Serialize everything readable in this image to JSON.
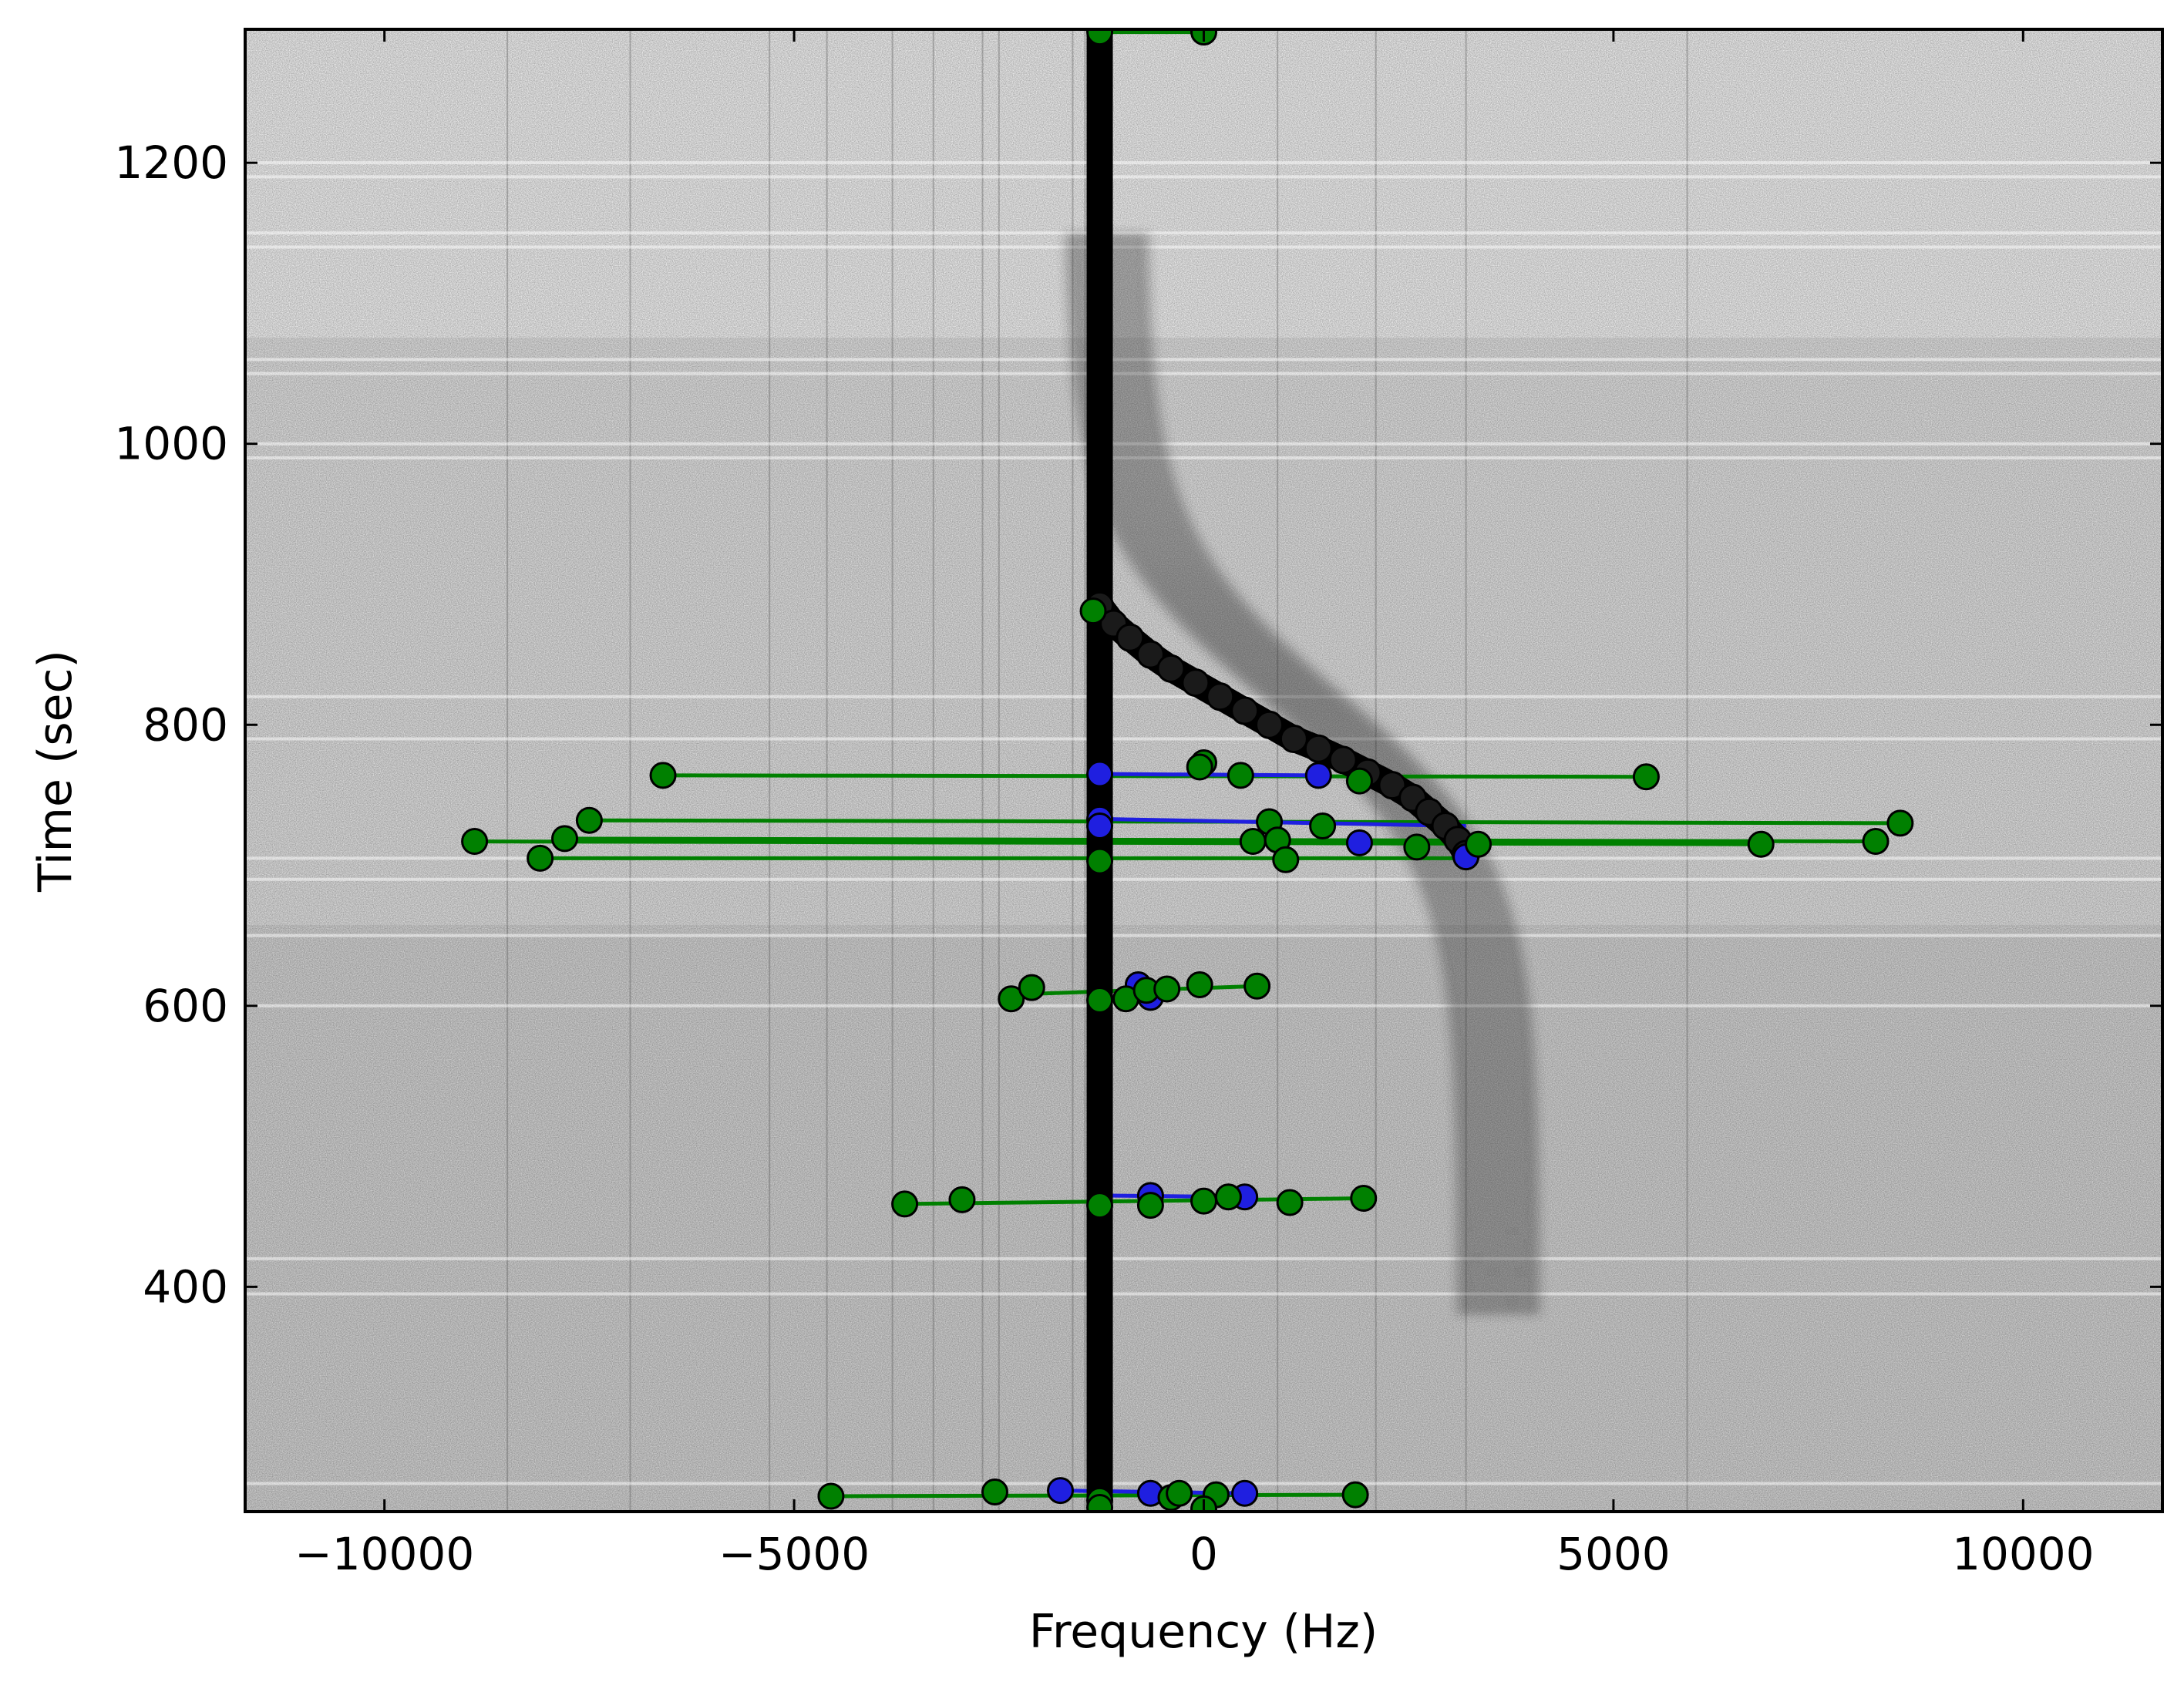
{
  "chart_data": {
    "type": "scatter",
    "title": "",
    "xlabel": "Frequency (Hz)",
    "ylabel": "Time (sec)",
    "xlim": [
      -11700,
      11700
    ],
    "ylim": [
      240,
      1295
    ],
    "xticks": [
      -10000,
      -5000,
      0,
      5000,
      10000
    ],
    "xtick_labels": [
      "−10000",
      "−5000",
      "0",
      "5000",
      "10000"
    ],
    "yticks": [
      400,
      600,
      800,
      1000,
      1200
    ],
    "ytick_labels": [
      "400",
      "600",
      "800",
      "1000",
      "1200"
    ],
    "background": "spectrogram (grayscale noise with dark drifting Doppler signal)",
    "colors": {
      "green": "#008000",
      "blue": "#1f1fe0",
      "track": "#000000",
      "frame": "#000000"
    },
    "track": {
      "name": "tracked frequency",
      "points": [
        [
          -1270,
          243
        ],
        [
          -1270,
          880
        ],
        [
          -1270,
          885
        ],
        [
          -1100,
          872
        ],
        [
          -900,
          862
        ],
        [
          -650,
          850
        ],
        [
          -400,
          840
        ],
        [
          -100,
          830
        ],
        [
          200,
          820
        ],
        [
          500,
          810
        ],
        [
          800,
          800
        ],
        [
          1100,
          790
        ],
        [
          1400,
          783
        ],
        [
          1700,
          775
        ],
        [
          2000,
          766
        ],
        [
          2300,
          757
        ],
        [
          2550,
          748
        ],
        [
          2750,
          738
        ],
        [
          2950,
          728
        ],
        [
          3100,
          718
        ],
        [
          3200,
          708
        ]
      ],
      "vertical_segment": {
        "x": -1270,
        "y_from": 243,
        "y_to": 1295
      }
    },
    "series": [
      {
        "name": "blue",
        "color": "#1f1fe0",
        "points": [
          [
            -1270,
            765
          ],
          [
            1400,
            764
          ],
          [
            -1270,
            733
          ],
          [
            -1270,
            728
          ],
          [
            1900,
            716
          ],
          [
            3200,
            706
          ],
          [
            -800,
            615
          ],
          [
            -650,
            606
          ],
          [
            -650,
            465
          ],
          [
            500,
            464
          ],
          [
            -1750,
            255
          ],
          [
            -650,
            253
          ],
          [
            500,
            253
          ]
        ]
      },
      {
        "name": "green",
        "color": "#008000",
        "points": [
          [
            -1270,
            1293
          ],
          [
            0,
            1293
          ],
          [
            -1350,
            881
          ],
          [
            -6600,
            764
          ],
          [
            5400,
            763
          ],
          [
            0,
            773
          ],
          [
            -50,
            770
          ],
          [
            450,
            764
          ],
          [
            1900,
            760
          ],
          [
            -7500,
            732
          ],
          [
            8500,
            730
          ],
          [
            800,
            731
          ],
          [
            1450,
            728
          ],
          [
            -7800,
            719
          ],
          [
            8200,
            717
          ],
          [
            -8900,
            717
          ],
          [
            6800,
            715
          ],
          [
            600,
            717
          ],
          [
            900,
            718
          ],
          [
            2600,
            713
          ],
          [
            3350,
            715
          ],
          [
            -8100,
            705
          ],
          [
            1000,
            704
          ],
          [
            -1270,
            703
          ],
          [
            -2350,
            605
          ],
          [
            -2100,
            613
          ],
          [
            -1270,
            604
          ],
          [
            -950,
            605
          ],
          [
            -700,
            611
          ],
          [
            -450,
            612
          ],
          [
            -50,
            615
          ],
          [
            650,
            614
          ],
          [
            -3650,
            459
          ],
          [
            -2950,
            462
          ],
          [
            -1270,
            458
          ],
          [
            -650,
            458
          ],
          [
            0,
            461
          ],
          [
            300,
            464
          ],
          [
            1050,
            460
          ],
          [
            1950,
            463
          ],
          [
            -4550,
            251
          ],
          [
            -2550,
            254
          ],
          [
            -1270,
            248
          ],
          [
            -1270,
            243
          ],
          [
            -400,
            250
          ],
          [
            -300,
            253
          ],
          [
            150,
            252
          ],
          [
            1850,
            252
          ],
          [
            0,
            242
          ]
        ]
      }
    ],
    "lines": [
      {
        "color": "#008000",
        "from": [
          -1270,
          1293
        ],
        "to": [
          0,
          1293
        ]
      },
      {
        "color": "#008000",
        "from": [
          -6600,
          764
        ],
        "to": [
          5400,
          763
        ]
      },
      {
        "color": "#008000",
        "from": [
          -7500,
          732
        ],
        "to": [
          8500,
          730
        ]
      },
      {
        "color": "#008000",
        "from": [
          -7800,
          719
        ],
        "to": [
          8200,
          717
        ]
      },
      {
        "color": "#008000",
        "from": [
          -8900,
          717
        ],
        "to": [
          6800,
          715
        ]
      },
      {
        "color": "#008000",
        "from": [
          -8100,
          705
        ],
        "to": [
          3350,
          705
        ]
      },
      {
        "color": "#008000",
        "from": [
          -2350,
          608
        ],
        "to": [
          650,
          614
        ]
      },
      {
        "color": "#008000",
        "from": [
          -3650,
          459
        ],
        "to": [
          1950,
          463
        ]
      },
      {
        "color": "#008000",
        "from": [
          -4550,
          251
        ],
        "to": [
          1850,
          252
        ]
      },
      {
        "color": "#1f1fe0",
        "from": [
          -1270,
          765
        ],
        "to": [
          1400,
          764
        ]
      },
      {
        "color": "#1f1fe0",
        "from": [
          -1270,
          733
        ],
        "to": [
          3200,
          728
        ]
      },
      {
        "color": "#1f1fe0",
        "from": [
          -1270,
          465
        ],
        "to": [
          500,
          464
        ]
      },
      {
        "color": "#1f1fe0",
        "from": [
          -1750,
          255
        ],
        "to": [
          500,
          253
        ]
      }
    ]
  }
}
